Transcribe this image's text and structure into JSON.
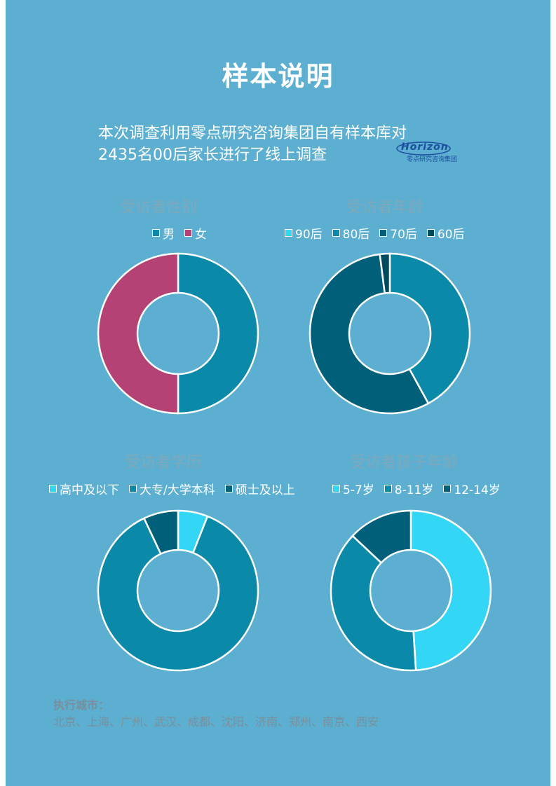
{
  "title": "样本说明",
  "intro_line1": "本次调查利用零点研究咨询集团自有样本库对",
  "intro_line2": "2435名00后家长进行了线上调查",
  "logo": {
    "word": "Horizon",
    "sub": "零点研究咨询集团"
  },
  "charts": [
    {
      "title": "受访者性别",
      "legend": [
        {
          "label": "男",
          "color": "#0a8aa8"
        },
        {
          "label": "女",
          "color": "#b44274"
        }
      ]
    },
    {
      "title": "受访者年龄",
      "legend": [
        {
          "label": "90后",
          "color": "#33d6f5"
        },
        {
          "label": "80后",
          "color": "#0a8aa8"
        },
        {
          "label": "70后",
          "color": "#00607a"
        },
        {
          "label": "60后",
          "color": "#004a5c"
        }
      ]
    },
    {
      "title": "受访者学历",
      "legend": [
        {
          "label": "高中及以下",
          "color": "#33d6f5"
        },
        {
          "label": "大专/大学本科",
          "color": "#0a8aa8"
        },
        {
          "label": "硕士及以上",
          "color": "#00607a"
        }
      ]
    },
    {
      "title": "受访者孩子年龄",
      "legend": [
        {
          "label": "5-7岁",
          "color": "#33d6f5"
        },
        {
          "label": "8-11岁",
          "color": "#0a8aa8"
        },
        {
          "label": "12-14岁",
          "color": "#00607a"
        }
      ]
    }
  ],
  "chart_data": [
    {
      "type": "pie",
      "title": "受访者性别",
      "categories": [
        "男",
        "女"
      ],
      "values": [
        50,
        50
      ],
      "colors": [
        "#0a8aa8",
        "#b44274"
      ]
    },
    {
      "type": "pie",
      "title": "受访者年龄",
      "categories": [
        "90后",
        "80后",
        "70后",
        "60后"
      ],
      "values": [
        0,
        42,
        56,
        2
      ],
      "colors": [
        "#33d6f5",
        "#0a8aa8",
        "#00607a",
        "#004a5c"
      ]
    },
    {
      "type": "pie",
      "title": "受访者学历",
      "categories": [
        "高中及以下",
        "大专/大学本科",
        "硕士及以上"
      ],
      "values": [
        6,
        87,
        7
      ],
      "colors": [
        "#33d6f5",
        "#0a8aa8",
        "#00607a"
      ]
    },
    {
      "type": "pie",
      "title": "受访者孩子年龄",
      "categories": [
        "5-7岁",
        "8-11岁",
        "12-14岁"
      ],
      "values": [
        49,
        38,
        13
      ],
      "colors": [
        "#33d6f5",
        "#0a8aa8",
        "#00607a"
      ]
    }
  ],
  "cities_label": "执行城市：",
  "cities": "北京、上海、广州、武汉、成都、沈阳、济南、郑州、南京、西安"
}
